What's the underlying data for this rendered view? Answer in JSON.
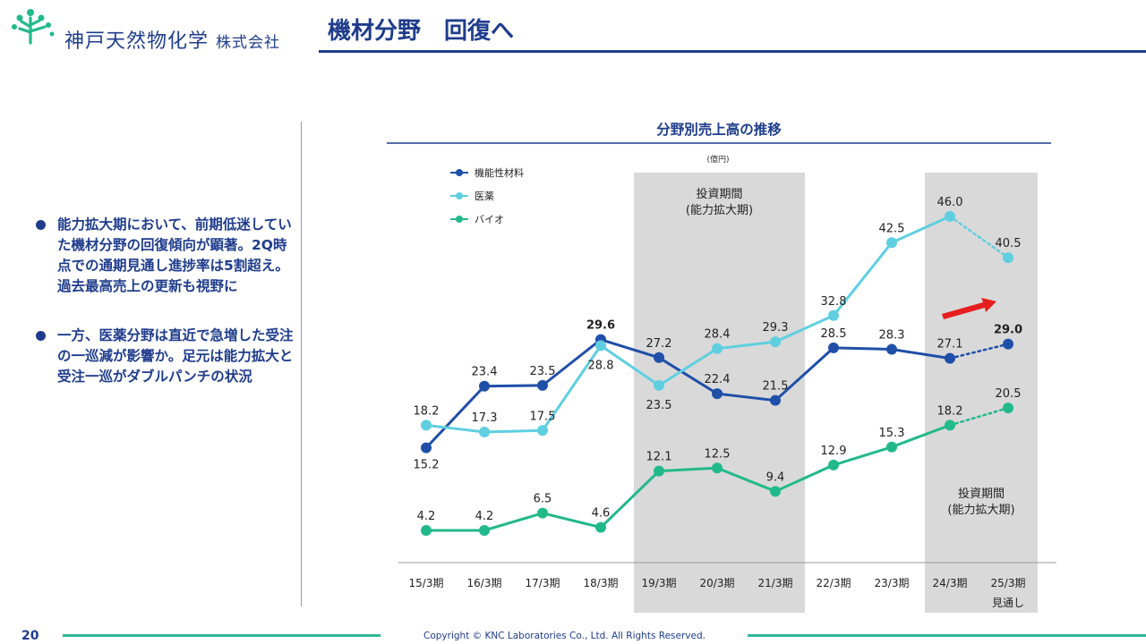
{
  "header": {
    "company_name": "神戸天然物化学",
    "company_suffix": "株式会社",
    "page_title": "機材分野　回復へ"
  },
  "bullets": [
    "能力拡大期において、前期低迷していた機材分野の回復傾向が顕著。2Q時点での通期見通し進捗率は5割超え。過去最高売上の更新も視野に",
    "一方、医薬分野は直近で急増した受注の一巡減が影響か。足元は能力拡大と受注一巡がダブルパンチの状況"
  ],
  "chart_data": {
    "type": "line",
    "title": "分野別売上高の推移",
    "unit_label": "(億円)",
    "categories": [
      "15/3期",
      "16/3期",
      "17/3期",
      "18/3期",
      "19/3期",
      "20/3期",
      "21/3期",
      "22/3期",
      "23/3期",
      "24/3期",
      "25/3期"
    ],
    "forecast_label": "見通し",
    "series": [
      {
        "name": "機能性材料",
        "color": "#1f4fa8",
        "values": [
          15.2,
          23.4,
          23.5,
          29.6,
          27.2,
          22.4,
          21.5,
          28.5,
          28.3,
          27.1,
          29.0
        ]
      },
      {
        "name": "医薬",
        "color": "#5fcfe0",
        "values": [
          18.2,
          17.3,
          17.5,
          28.8,
          23.5,
          28.4,
          29.3,
          32.8,
          42.5,
          46.0,
          40.5
        ]
      },
      {
        "name": "バイオ",
        "color": "#22b98a",
        "values": [
          4.2,
          4.2,
          6.5,
          4.6,
          12.1,
          12.5,
          9.4,
          12.9,
          15.3,
          18.2,
          20.5
        ]
      }
    ],
    "labels_text": {
      "機能性材料": [
        "15.2",
        "23.4",
        "23.5",
        "29.6",
        "27.2",
        "22.4",
        "21.5",
        "28.5",
        "28.3",
        "27.1",
        "29.0"
      ],
      "医薬": [
        "18.2",
        "17.3",
        "17.5",
        "28.8",
        "23.5",
        "28.4",
        "29.3",
        "32.8",
        "42.5",
        "46.0",
        "40.5"
      ],
      "バイオ": [
        "4.2",
        "4.2",
        "6.5",
        "4.6",
        "12.1",
        "12.5",
        "9.4",
        "12.9",
        "15.3",
        "18.2",
        "20.5"
      ]
    },
    "shaded_periods": [
      {
        "from": "19/3期",
        "to": "21/3期",
        "label_line1": "投資期間",
        "label_line2": "(能力拡大期)"
      },
      {
        "from": "24/3期",
        "to": "25/3期",
        "label_line1": "投資期間",
        "label_line2": "(能力拡大期)"
      }
    ],
    "forecast_from_index": 9,
    "highlight_arrow_color": "#e61e1e",
    "ylim": [
      0,
      50
    ]
  },
  "footer": {
    "page_number": "20",
    "copyright": "Copyright © KNC Laboratories Co., Ltd. All Rights Reserved."
  },
  "colors": {
    "brand_navy": "#1f3c8c",
    "brand_green": "#2fb89a",
    "shade": "#d9d9d9"
  }
}
